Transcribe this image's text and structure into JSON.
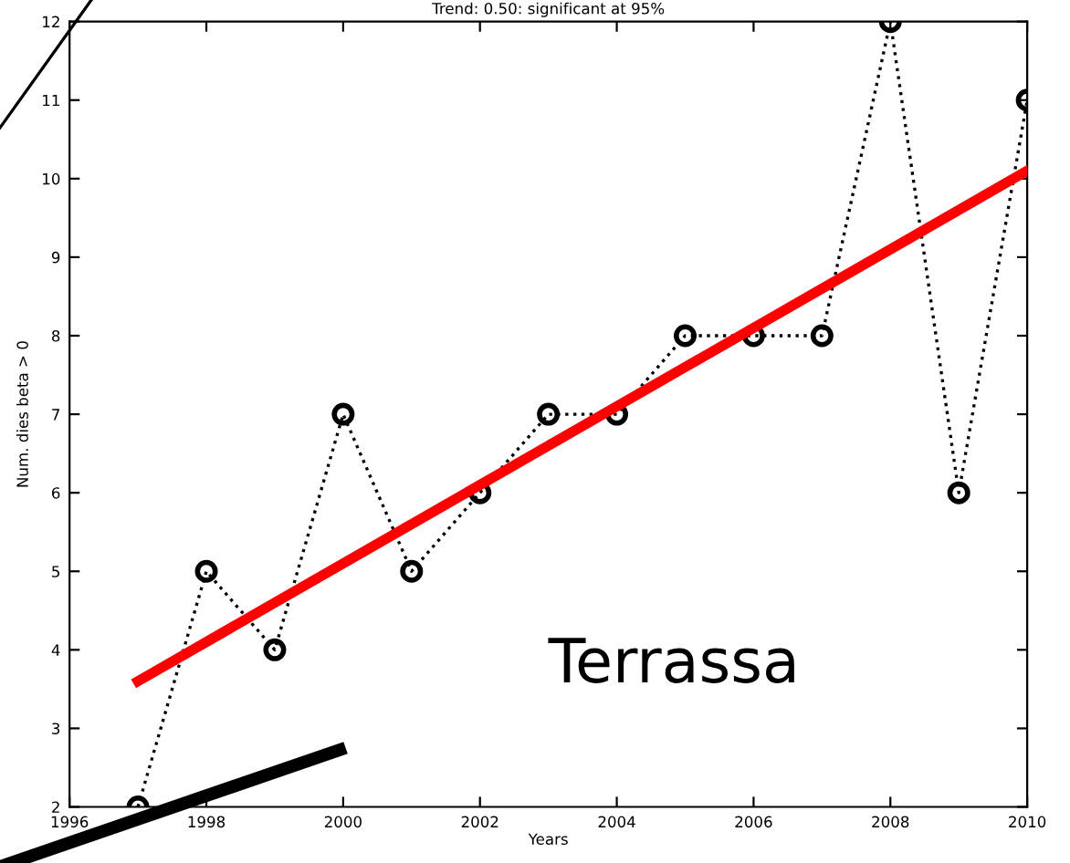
{
  "chart_data": {
    "type": "line",
    "title": "Trend: 0.50: significant at 95%",
    "xlabel": "Years",
    "ylabel": "Num. dies beta > 0",
    "x": [
      1997,
      1998,
      1999,
      2000,
      2001,
      2002,
      2003,
      2004,
      2005,
      2006,
      2007,
      2008,
      2009,
      2010
    ],
    "series": [
      {
        "color": "#000000",
        "values": [
          2,
          5,
          4,
          7,
          5,
          6,
          7,
          7,
          8,
          8,
          8,
          12,
          6,
          11
        ],
        "marker": "circle",
        "line_style": "dotted"
      },
      {
        "type": "line",
        "color": "#ff0000",
        "x": [
          1997,
          2010
        ],
        "values": [
          3.6,
          10.1
        ],
        "marker": "none",
        "line_style": "solid"
      }
    ],
    "xlim": [
      1996,
      2010
    ],
    "xticks": [
      1996,
      1998,
      2000,
      2002,
      2004,
      2006,
      2008,
      2010
    ],
    "ylim": [
      2,
      12
    ],
    "yticks": [
      2,
      3,
      4,
      5,
      6,
      7,
      8,
      9,
      10,
      11,
      12
    ],
    "annotations": [
      "Terrassa"
    ],
    "grid": false,
    "legend": false
  }
}
